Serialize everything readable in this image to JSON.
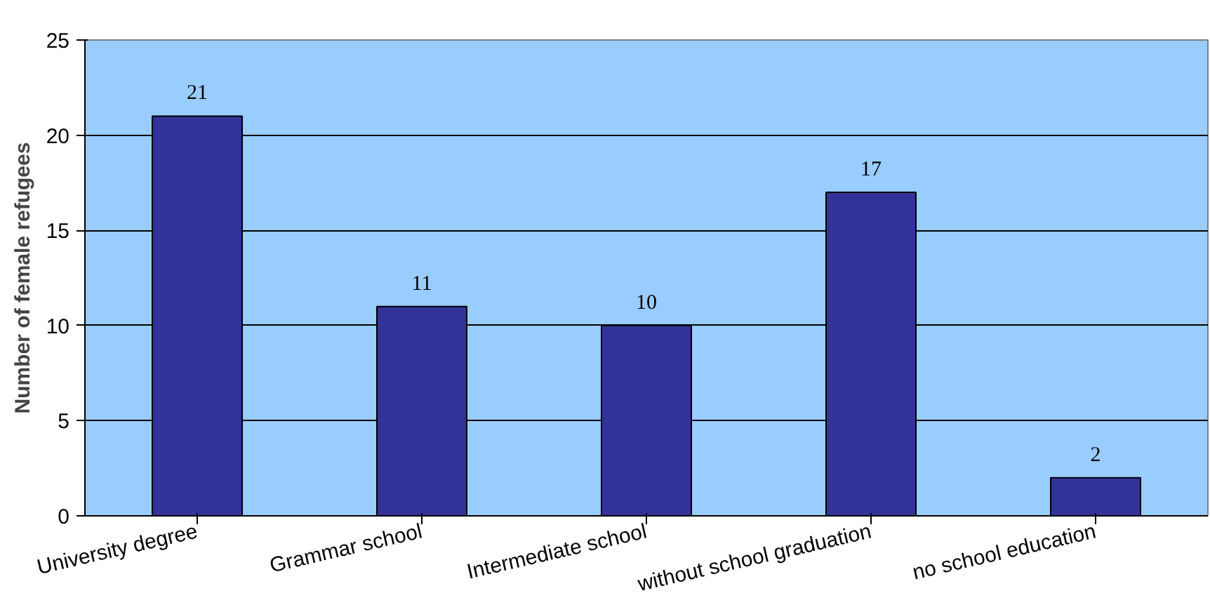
{
  "chart_data": {
    "type": "bar",
    "ylabel": "Number of female refugees",
    "categories": [
      "University degree",
      "Grammar school",
      "Intermediate school",
      "without school graduation",
      "no school education"
    ],
    "values": [
      21,
      11,
      10,
      17,
      2
    ],
    "color": "#333399",
    "data_labels": true,
    "ylim": [
      0,
      25
    ],
    "yticks": [
      0,
      5,
      10,
      15,
      20,
      25
    ],
    "grid": "y"
  }
}
